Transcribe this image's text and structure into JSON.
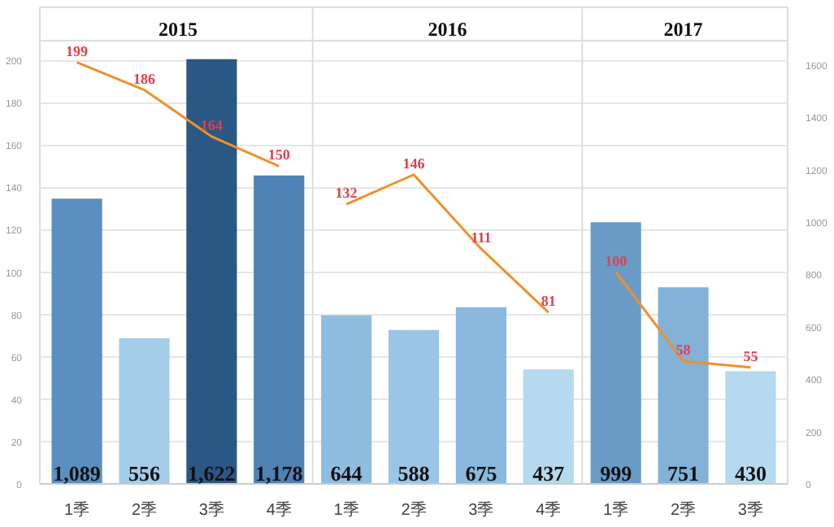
{
  "chart_data": {
    "type": "bar",
    "categories": [
      "1季",
      "2季",
      "3季",
      "4季",
      "1季",
      "2季",
      "3季",
      "4季",
      "1季",
      "2季",
      "3季"
    ],
    "ylim": [
      0,
      225
    ],
    "yticks": [
      0,
      20,
      40,
      60,
      80,
      100,
      120,
      140,
      160,
      180,
      200
    ],
    "y2lim": [
      0,
      1820
    ],
    "y2ticks": [
      0,
      200,
      400,
      600,
      800,
      1000,
      1200,
      1400,
      1600
    ],
    "grid": "y",
    "annotations": [
      "2015",
      "2016",
      "2017"
    ],
    "series": [
      {
        "axis": "y2",
        "colors": [
          "#5b8fbf",
          "#a3cde8",
          "#2b5784",
          "#4f81b4",
          "#8fbde0",
          "#9ac5e6",
          "#8ab8de",
          "#b5d9ee",
          "#6a9bc7",
          "#82b2d8",
          "#b5d9ee"
        ],
        "values": [
          1089,
          556,
          1622,
          1178,
          644,
          588,
          675,
          437,
          999,
          751,
          430
        ],
        "value_labels": [
          "1,089",
          "556",
          "1,622",
          "1,178",
          "644",
          "588",
          "675",
          "437",
          "999",
          "751",
          "430"
        ]
      },
      {
        "type": "line",
        "axis": "y",
        "color": "#f0902a",
        "values": [
          199,
          186,
          164,
          150,
          null,
          null,
          null,
          null,
          null,
          null,
          null
        ],
        "value_labels": [
          "199",
          "186",
          "164",
          "150",
          null,
          null,
          null,
          null,
          null,
          null,
          null
        ]
      },
      {
        "type": "line",
        "axis": "y",
        "color": "#f0902a",
        "values": [
          null,
          null,
          null,
          null,
          132,
          146,
          111,
          81,
          null,
          null,
          null
        ],
        "value_labels": [
          null,
          null,
          null,
          null,
          "132",
          "146",
          "111",
          "81",
          null,
          null,
          null
        ]
      },
      {
        "type": "line",
        "axis": "y",
        "color": "#f0902a",
        "values": [
          null,
          null,
          null,
          null,
          null,
          null,
          null,
          null,
          100,
          58,
          55
        ],
        "value_labels": [
          null,
          null,
          null,
          null,
          null,
          null,
          null,
          null,
          "100",
          "58",
          "55"
        ]
      }
    ]
  }
}
